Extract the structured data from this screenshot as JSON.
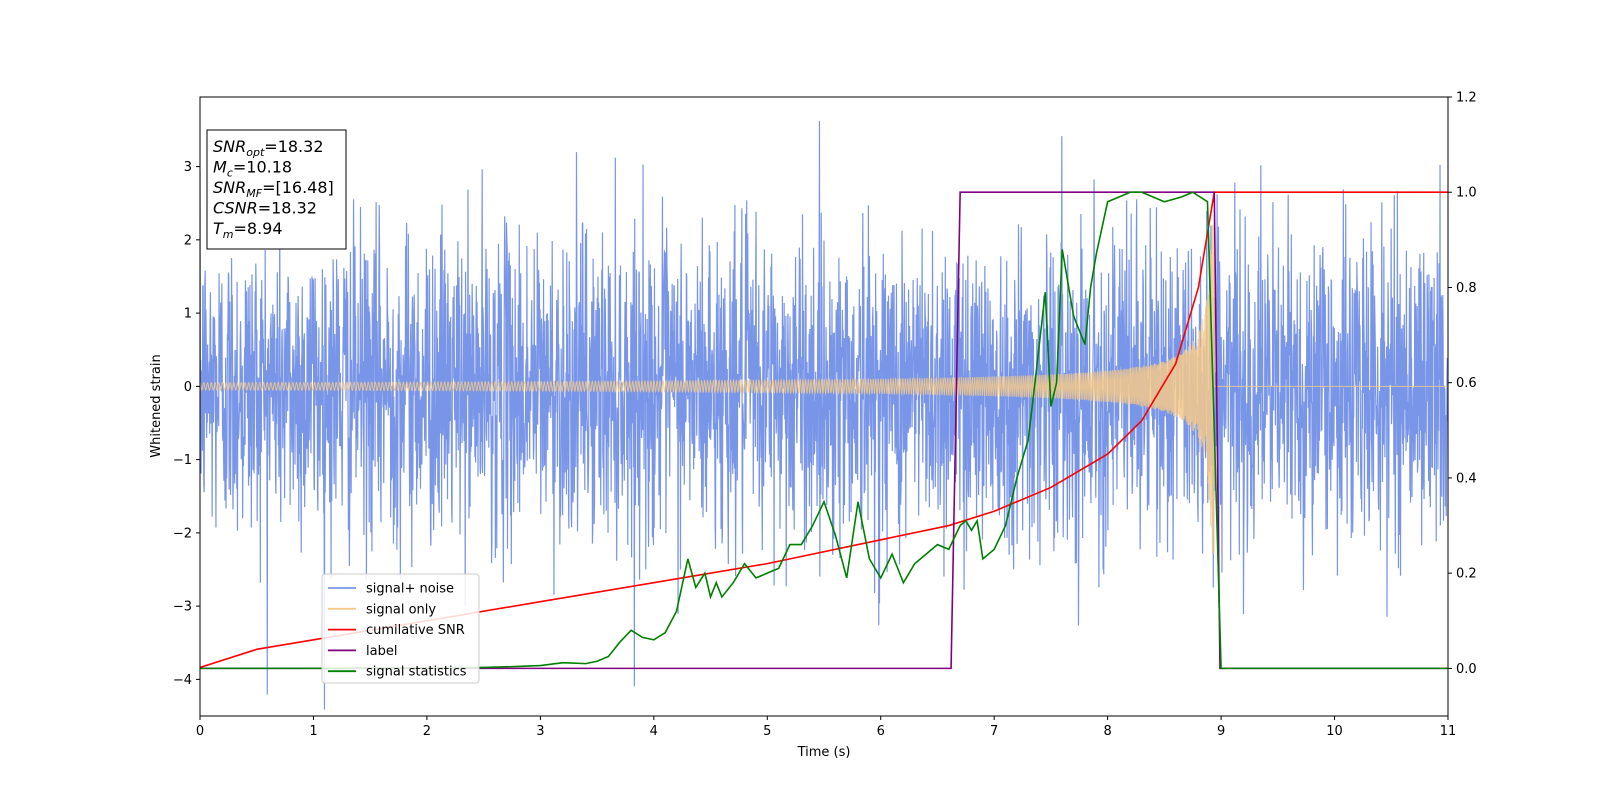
{
  "chart_data": {
    "type": "line",
    "xlabel": "Time (s)",
    "ylabel": "Whitened strain",
    "xlim": [
      0,
      11
    ],
    "ylim_left": [
      -4.5,
      3.95
    ],
    "ylim_right": [
      -0.1,
      1.2
    ],
    "x_ticks": [
      "0",
      "1",
      "2",
      "3",
      "4",
      "5",
      "6",
      "7",
      "8",
      "9",
      "10",
      "11"
    ],
    "y_left_ticks": [
      "3",
      "2",
      "1",
      "0",
      "−1",
      "−2",
      "−3",
      "−4"
    ],
    "y_right_ticks": [
      "1.2",
      "1.0",
      "0.8",
      "0.6",
      "0.4",
      "0.2",
      "0.0"
    ],
    "info_box": {
      "lines": [
        {
          "base": "SNR",
          "sub": "opt",
          "value": "=18.32"
        },
        {
          "base": "M",
          "sub": "c",
          "value": "=10.18"
        },
        {
          "base": "SNR",
          "sub": "MF",
          "value": "=[16.48]"
        },
        {
          "base": "CSNR",
          "sub": "",
          "value": "=18.32"
        },
        {
          "base": "T",
          "sub": "m",
          "value": "=8.94"
        }
      ]
    },
    "series": [
      {
        "name": "signal+ noise",
        "axis": "left",
        "color": "#7895e8",
        "description_values": {
          "noise_sigma": 1.0,
          "duration": [
            0,
            11
          ]
        }
      },
      {
        "name": "signal only",
        "axis": "left",
        "color": "#f5c98a",
        "chirp": {
          "start": 0,
          "merger": 8.94,
          "amp_start": 0.05,
          "amp_end": 2.3
        }
      },
      {
        "name": "cumilative SNR",
        "axis": "right",
        "color": "#ff0000",
        "x": [
          0,
          0.5,
          1,
          2,
          3,
          4,
          5,
          6,
          6.6,
          7,
          7.5,
          8,
          8.3,
          8.6,
          8.8,
          8.94,
          11
        ],
        "y": [
          0.002,
          0.04,
          0.06,
          0.1,
          0.14,
          0.18,
          0.22,
          0.27,
          0.3,
          0.33,
          0.38,
          0.45,
          0.52,
          0.64,
          0.8,
          1.0,
          1.0
        ]
      },
      {
        "name": "label",
        "axis": "right",
        "color": "#800080",
        "x": [
          0,
          6.62,
          6.7,
          8.94,
          8.99,
          11
        ],
        "y": [
          0.0,
          0.0,
          1.0,
          1.0,
          0.0,
          0.0
        ]
      },
      {
        "name": "signal statistics",
        "axis": "right",
        "color": "#008000",
        "x": [
          0,
          0.5,
          1,
          1.5,
          2,
          2.5,
          2.8,
          3.0,
          3.2,
          3.4,
          3.5,
          3.6,
          3.7,
          3.8,
          3.9,
          4.0,
          4.1,
          4.2,
          4.3,
          4.37,
          4.45,
          4.5,
          4.55,
          4.6,
          4.7,
          4.8,
          4.9,
          5.0,
          5.1,
          5.2,
          5.3,
          5.4,
          5.5,
          5.6,
          5.7,
          5.8,
          5.9,
          6.0,
          6.1,
          6.2,
          6.3,
          6.4,
          6.5,
          6.6,
          6.7,
          6.75,
          6.8,
          6.85,
          6.9,
          7.0,
          7.1,
          7.2,
          7.3,
          7.35,
          7.45,
          7.5,
          7.55,
          7.6,
          7.7,
          7.8,
          7.85,
          7.9,
          8.0,
          8.1,
          8.2,
          8.3,
          8.5,
          8.65,
          8.75,
          8.88,
          8.94,
          9.0,
          9.1,
          11
        ],
        "y": [
          0.0,
          0.0,
          0.0,
          0.001,
          0.001,
          0.002,
          0.004,
          0.006,
          0.012,
          0.01,
          0.015,
          0.025,
          0.055,
          0.08,
          0.065,
          0.06,
          0.075,
          0.12,
          0.23,
          0.17,
          0.2,
          0.15,
          0.18,
          0.15,
          0.18,
          0.22,
          0.19,
          0.2,
          0.21,
          0.26,
          0.26,
          0.3,
          0.35,
          0.28,
          0.19,
          0.35,
          0.23,
          0.19,
          0.24,
          0.18,
          0.22,
          0.24,
          0.26,
          0.25,
          0.3,
          0.31,
          0.29,
          0.31,
          0.23,
          0.25,
          0.3,
          0.4,
          0.48,
          0.58,
          0.79,
          0.55,
          0.6,
          0.88,
          0.74,
          0.68,
          0.8,
          0.87,
          0.98,
          0.99,
          1.0,
          1.0,
          0.98,
          0.99,
          1.0,
          0.98,
          0.5,
          0.0,
          0.0,
          0.0
        ]
      }
    ],
    "legend": {
      "position": "lower-left",
      "entries": [
        "signal+ noise",
        "signal only",
        "cumilative SNR",
        "label",
        "signal statistics"
      ]
    }
  }
}
